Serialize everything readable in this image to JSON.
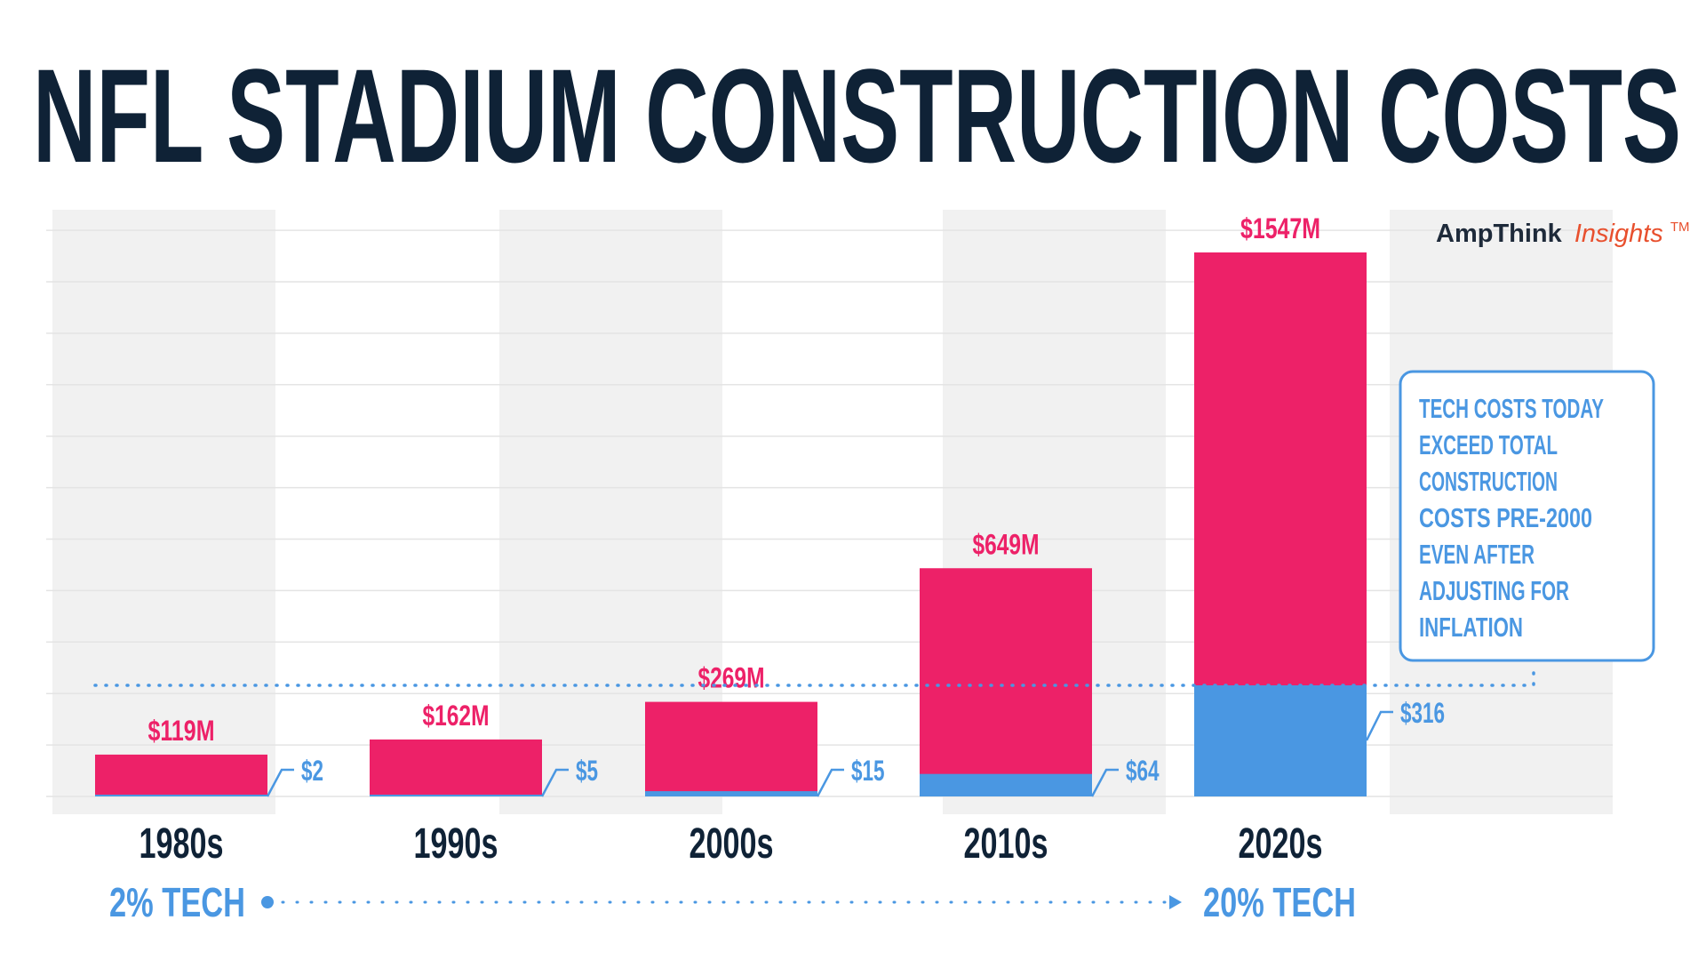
{
  "title": "NFL STADIUM CONSTRUCTION COSTS",
  "logo": {
    "brand": "AmpThink",
    "suffix": "Insights",
    "mark": "TM"
  },
  "callout": [
    "TECH COSTS TODAY",
    "EXCEED TOTAL",
    "CONSTRUCTION",
    "COSTS  PRE-2000",
    "EVEN AFTER",
    "ADJUSTING FOR",
    "INFLATION"
  ],
  "footer": {
    "start_label": "2% TECH",
    "end_label": "20% TECH"
  },
  "colors": {
    "total": "#ED2168",
    "tech": "#4A97E2",
    "title": "#0F2236",
    "band": "#F1F1F1",
    "logo_suffix": "#E8502E"
  },
  "chart_data": {
    "type": "bar",
    "stacked": true,
    "categories": [
      "1980s",
      "1990s",
      "2000s",
      "2010s",
      "2020s"
    ],
    "series": [
      {
        "values": [
          119,
          162,
          269,
          649,
          1547
        ],
        "labels": [
          "$119M",
          "$162M",
          "$269M",
          "$649M",
          "$1547M"
        ]
      },
      {
        "values": [
          2,
          5,
          15,
          64,
          316
        ],
        "labels": [
          "$2",
          "$5",
          "$15",
          "$64",
          "$316"
        ]
      }
    ],
    "unit": "$M",
    "grid": true,
    "reference_line_value": 316
  }
}
